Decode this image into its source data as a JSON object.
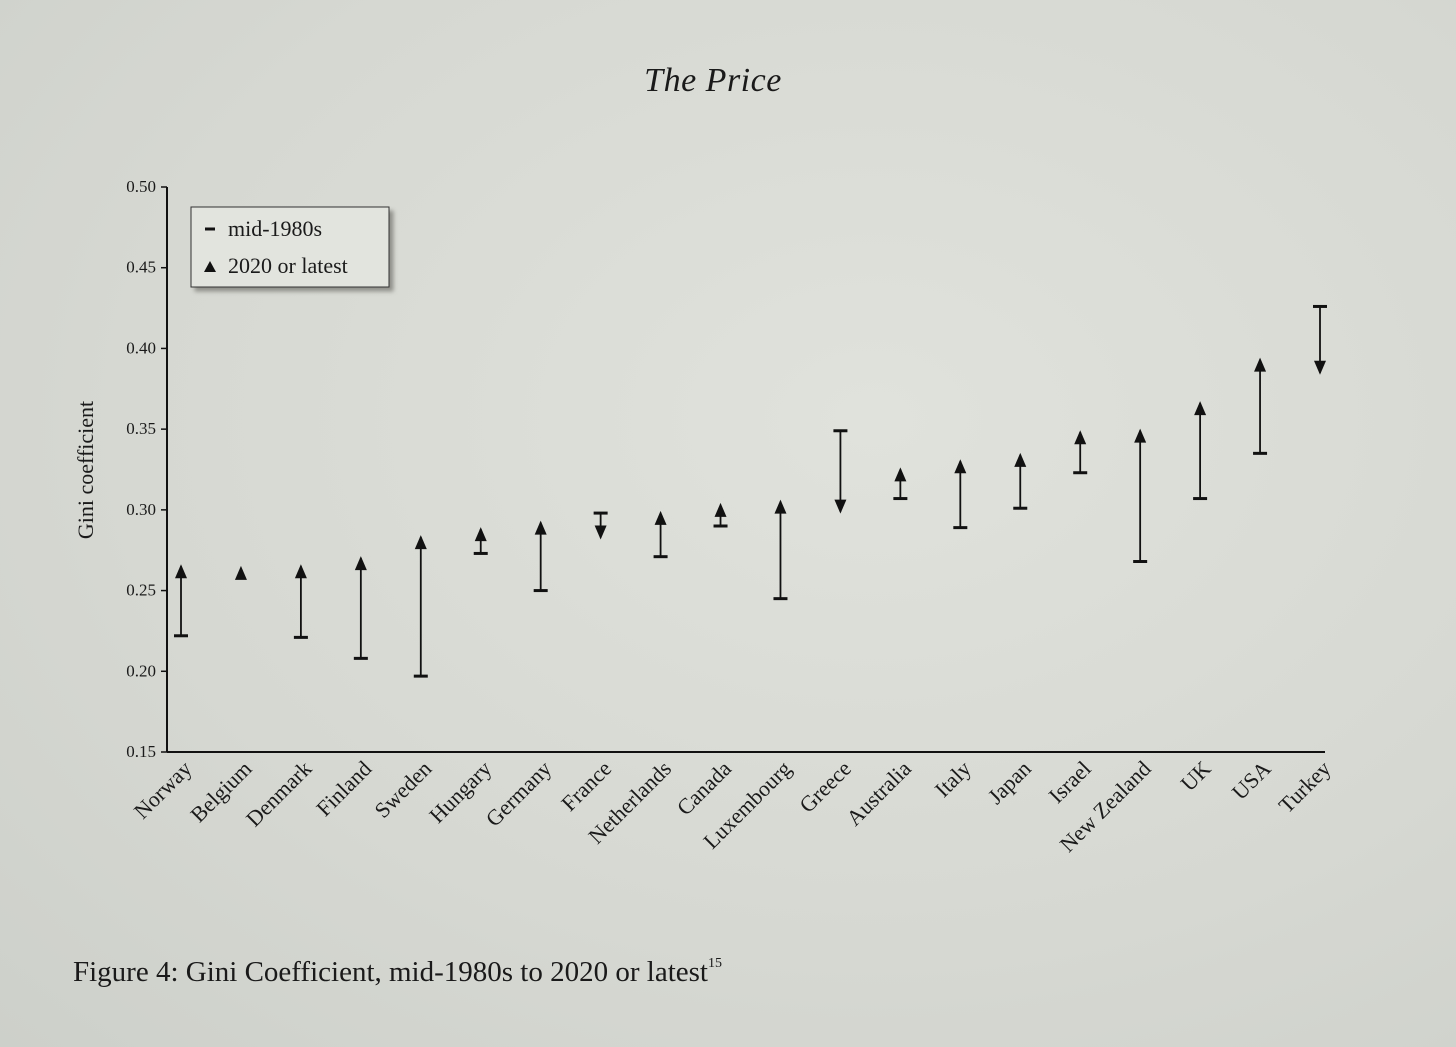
{
  "header": {
    "title": "The Price"
  },
  "caption": {
    "text": "Figure 4: Gini Coefficient, mid-1980s to 2020 or latest",
    "footnote": "15"
  },
  "chart_data": {
    "type": "range-arrow",
    "ylabel": "Gini coefficient",
    "xlabel": "",
    "ylim": [
      0.15,
      0.5
    ],
    "yticks": [
      "0.50",
      "0.45",
      "0.40",
      "0.35",
      "0.30",
      "0.25",
      "0.20",
      "0.15"
    ],
    "legend": {
      "placement": "top-left",
      "entries": [
        {
          "marker": "dash",
          "label": "mid-1980s"
        },
        {
          "marker": "triangle",
          "label": "2020 or latest"
        }
      ]
    },
    "categories": [
      "Norway",
      "Belgium",
      "Denmark",
      "Finland",
      "Sweden",
      "Hungary",
      "Germany",
      "France",
      "Netherlands",
      "Canada",
      "Luxembourg",
      "Greece",
      "Australia",
      "Italy",
      "Japan",
      "Israel",
      "New Zealand",
      "UK",
      "USA",
      "Turkey"
    ],
    "series": [
      {
        "name": "mid-1980s",
        "values": [
          0.222,
          null,
          0.221,
          0.208,
          0.197,
          0.273,
          0.25,
          0.298,
          0.271,
          0.29,
          0.245,
          0.349,
          0.307,
          0.289,
          0.301,
          0.323,
          0.268,
          0.307,
          0.335,
          0.426
        ]
      },
      {
        "name": "2020 or latest",
        "values": [
          0.262,
          0.261,
          0.262,
          0.267,
          0.28,
          0.285,
          0.289,
          0.286,
          0.295,
          0.3,
          0.302,
          0.302,
          0.322,
          0.327,
          0.331,
          0.345,
          0.346,
          0.363,
          0.39,
          0.388
        ]
      }
    ]
  }
}
